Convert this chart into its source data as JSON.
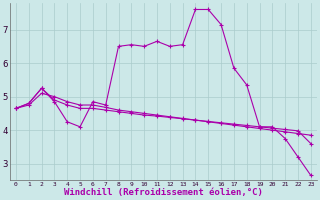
{
  "background_color": "#cce8e8",
  "grid_color": "#aacccc",
  "line_color": "#aa00aa",
  "xlim": [
    -0.5,
    23.5
  ],
  "ylim": [
    2.5,
    7.8
  ],
  "xlabel": "Windchill (Refroidissement éolien,°C)",
  "xlabel_fontsize": 6.5,
  "yticks": [
    3,
    4,
    5,
    6,
    7
  ],
  "xticks": [
    0,
    1,
    2,
    3,
    4,
    5,
    6,
    7,
    8,
    9,
    10,
    11,
    12,
    13,
    14,
    15,
    16,
    17,
    18,
    19,
    20,
    21,
    22,
    23
  ],
  "series1_x": [
    0,
    1,
    2,
    3,
    4,
    5,
    6,
    7,
    8,
    9,
    10,
    11,
    12,
    13,
    14,
    15,
    16,
    17,
    18,
    19,
    20,
    21,
    22,
    23
  ],
  "series1_y": [
    4.65,
    4.75,
    5.1,
    5.0,
    4.85,
    4.75,
    4.75,
    4.68,
    4.6,
    4.55,
    4.5,
    4.45,
    4.4,
    4.35,
    4.3,
    4.25,
    4.2,
    4.15,
    4.1,
    4.05,
    4.0,
    3.95,
    3.9,
    3.85
  ],
  "series2_x": [
    0,
    1,
    2,
    3,
    4,
    5,
    6,
    7,
    8,
    9,
    10,
    11,
    12,
    13,
    14,
    15,
    16,
    17,
    18,
    19,
    20,
    21,
    22,
    23
  ],
  "series2_y": [
    4.65,
    4.8,
    5.25,
    4.9,
    4.75,
    4.65,
    4.65,
    4.6,
    4.55,
    4.5,
    4.45,
    4.42,
    4.38,
    4.34,
    4.3,
    4.26,
    4.22,
    4.18,
    4.14,
    4.1,
    4.06,
    4.02,
    3.98,
    3.6
  ],
  "series3_x": [
    0,
    1,
    2,
    3,
    4,
    5,
    6,
    7,
    8,
    9,
    10,
    11,
    12,
    13,
    14,
    15,
    16,
    17,
    18,
    19,
    20,
    21,
    22,
    23
  ],
  "series3_y": [
    4.65,
    4.8,
    5.25,
    4.85,
    4.25,
    4.1,
    4.85,
    4.75,
    6.5,
    6.55,
    6.5,
    6.65,
    6.5,
    6.55,
    7.6,
    7.6,
    7.15,
    5.85,
    5.35,
    4.1,
    4.1,
    3.75,
    3.2,
    2.65
  ]
}
